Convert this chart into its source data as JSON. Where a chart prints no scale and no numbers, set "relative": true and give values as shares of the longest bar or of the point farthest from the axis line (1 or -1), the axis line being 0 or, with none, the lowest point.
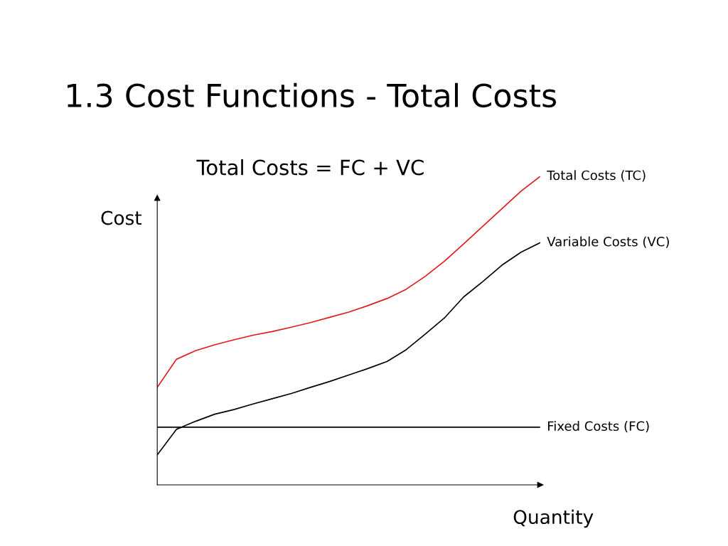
{
  "chart_data": {
    "type": "line",
    "title": "1.3 Cost Functions - Total Costs",
    "xlabel": "Quantity",
    "ylabel": "Cost",
    "relative": true,
    "legend": false,
    "marker": "none",
    "line_style": "solid",
    "annotations": [
      "Total Costs = FC + VC"
    ],
    "categories": [
      null,
      null,
      null,
      null,
      null,
      null,
      null,
      null,
      null,
      null,
      null,
      null,
      null,
      null,
      null,
      null,
      null,
      null,
      null,
      null,
      null
    ],
    "series": [
      {
        "name": "Total Costs (TC)",
        "color": "#e31a1c",
        "values": [
          0.316,
          0.407,
          0.435,
          0.454,
          0.47,
          0.485,
          0.497,
          0.511,
          0.526,
          0.543,
          0.56,
          0.581,
          0.604,
          0.634,
          0.676,
          0.725,
          0.781,
          0.838,
          0.895,
          0.952,
          1.0
        ]
      },
      {
        "name": "Variable Costs (VC)",
        "color": "#000000",
        "values": [
          0.097,
          0.18,
          0.206,
          0.229,
          0.244,
          0.262,
          0.279,
          0.296,
          0.316,
          0.335,
          0.356,
          0.377,
          0.4,
          0.438,
          0.489,
          0.541,
          0.609,
          0.659,
          0.712,
          0.754,
          0.785
        ]
      },
      {
        "name": "Fixed Costs (FC)",
        "color": "#000000",
        "values": [
          0.187,
          0.187,
          0.187,
          0.187,
          0.187,
          0.187,
          0.187,
          0.187,
          0.187,
          0.187,
          0.187,
          0.187,
          0.187,
          0.187,
          0.187,
          0.187,
          0.187,
          0.187,
          0.187,
          0.187,
          0.187
        ]
      }
    ]
  }
}
